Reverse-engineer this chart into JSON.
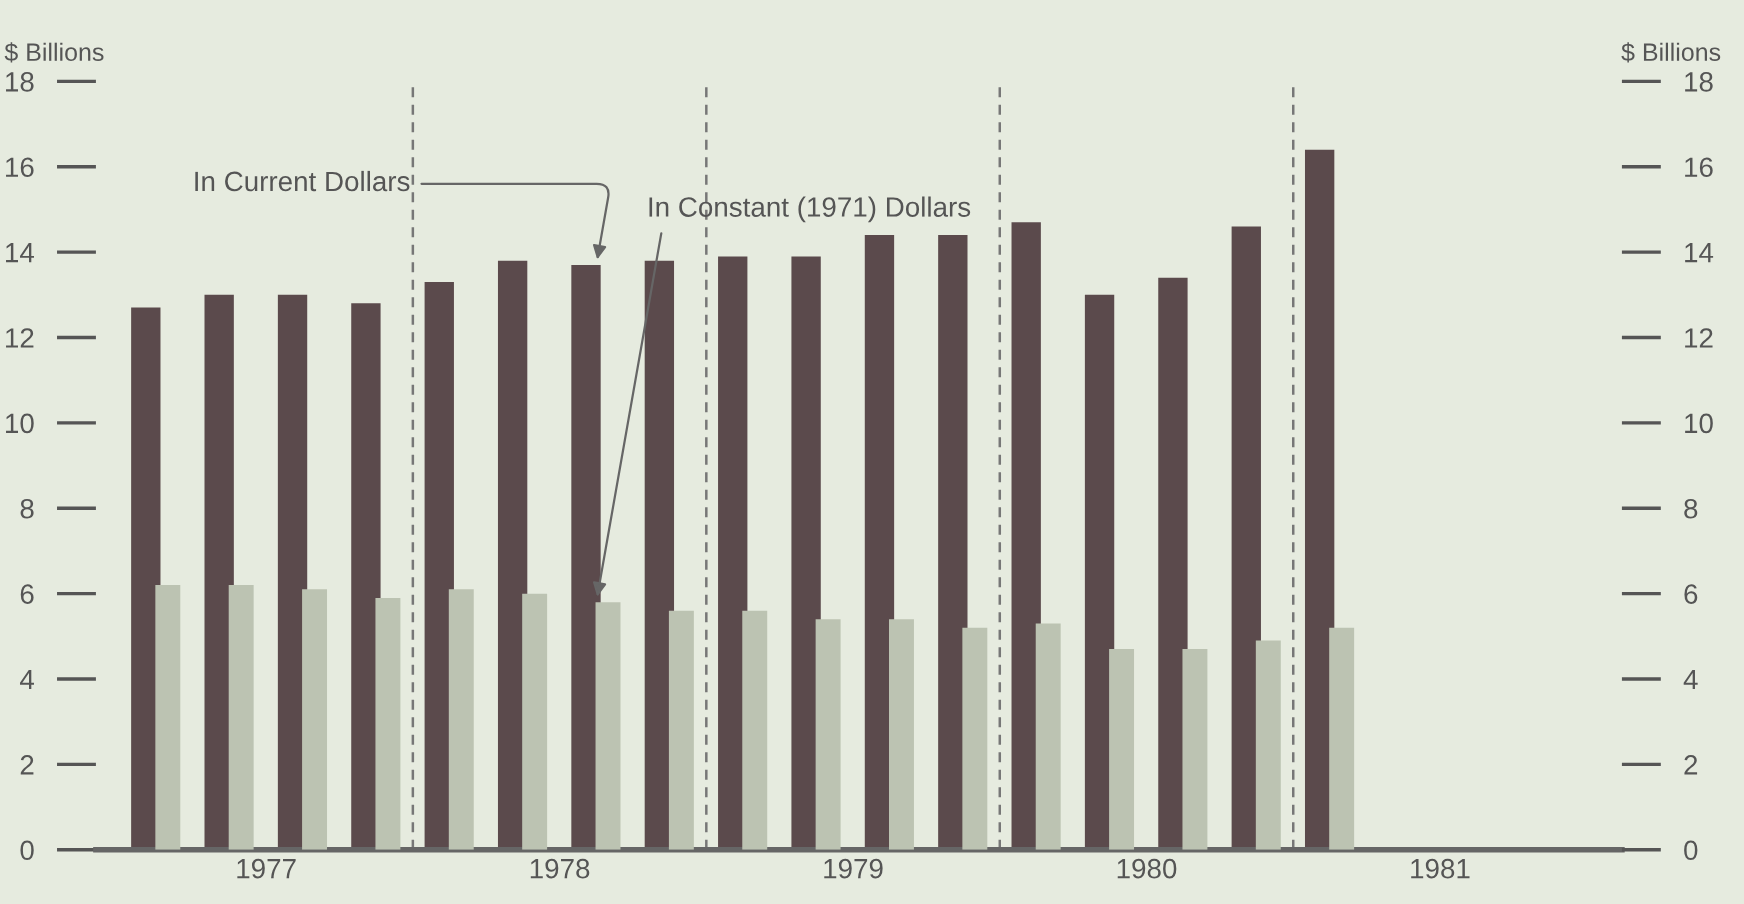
{
  "chart_data": {
    "type": "bar",
    "x": [
      1977.125,
      1977.375,
      1977.625,
      1977.875,
      1978.125,
      1978.375,
      1978.625,
      1978.875,
      1979.125,
      1979.375,
      1979.625,
      1979.875,
      1980.125,
      1980.375,
      1980.625,
      1980.875,
      1981.125
    ],
    "series": [
      {
        "color": "#5b4a4c",
        "values": [
          12.7,
          13.0,
          13.0,
          12.8,
          13.3,
          13.8,
          13.7,
          13.8,
          13.9,
          13.9,
          14.4,
          14.4,
          14.7,
          13.0,
          13.4,
          14.6,
          16.4
        ]
      },
      {
        "color": "#bcc3b2",
        "values": [
          6.2,
          6.2,
          6.1,
          5.9,
          6.1,
          6.0,
          5.8,
          5.6,
          5.6,
          5.4,
          5.4,
          5.2,
          5.3,
          4.7,
          4.7,
          4.9,
          5.2
        ]
      }
    ],
    "xlim": [
      1976.92,
      1982.12
    ],
    "xticks": [
      {
        "value": 1977.5,
        "label": "1977"
      },
      {
        "value": 1978.5,
        "label": "1978"
      },
      {
        "value": 1979.5,
        "label": "1979"
      },
      {
        "value": 1980.5,
        "label": "1980"
      },
      {
        "value": 1981.5,
        "label": "1981"
      }
    ],
    "ylim": [
      0,
      18
    ],
    "yticks": [
      0,
      2,
      4,
      6,
      8,
      10,
      12,
      14,
      16,
      18
    ],
    "y2lim": [
      0,
      18
    ],
    "y2ticks": [
      0,
      2,
      4,
      6,
      8,
      10,
      12,
      14,
      16,
      18
    ],
    "ylabel": "$ Billions",
    "y2label": "$ Billions",
    "ref_lines": [
      {
        "axis": "x",
        "value": 1978,
        "color": "#777777",
        "line_style": "dashed"
      },
      {
        "axis": "x",
        "value": 1979,
        "color": "#777777",
        "line_style": "dashed"
      },
      {
        "axis": "x",
        "value": 1980,
        "color": "#777777",
        "line_style": "dashed"
      },
      {
        "axis": "x",
        "value": 1981,
        "color": "#777777",
        "line_style": "dashed"
      }
    ],
    "annotations": [
      {
        "text": "In Current Dollars",
        "x": 1978.625,
        "y": 13.7
      },
      {
        "text": "In Constant (1971) Dollars",
        "x": 1978.625,
        "y": 5.8
      }
    ],
    "grid": false,
    "legend": false
  }
}
